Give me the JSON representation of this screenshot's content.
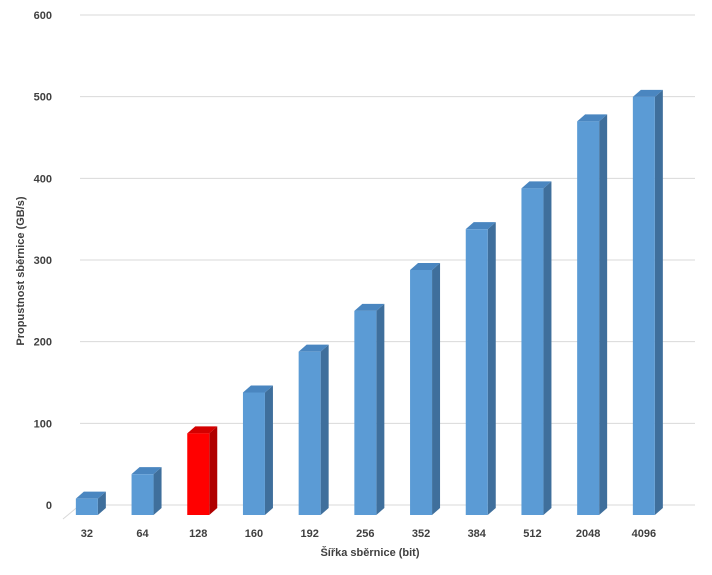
{
  "chart_data": {
    "type": "bar",
    "title": "",
    "xlabel": "Šířka sběrnice (bit)",
    "ylabel": "Propustnost sběrnice (GB/s)",
    "categories": [
      "32",
      "64",
      "128",
      "160",
      "192",
      "256",
      "352",
      "384",
      "512",
      "2048",
      "4096"
    ],
    "values": [
      20,
      50,
      100,
      150,
      200,
      250,
      300,
      350,
      400,
      482,
      512
    ],
    "ylim": [
      0,
      600
    ],
    "yticks": [
      "0",
      "100",
      "200",
      "300",
      "400",
      "500",
      "600"
    ],
    "grid": true,
    "legend": "none",
    "style": "3d-column",
    "colors": {
      "bar": "#5b9bd5",
      "bar_side": "#3f6f9c",
      "bar_top": "#4a86c0",
      "highlight": "#ff0000",
      "highlight_side": "#b00000",
      "highlight_top": "#d40000"
    },
    "highlight_category": "128"
  }
}
